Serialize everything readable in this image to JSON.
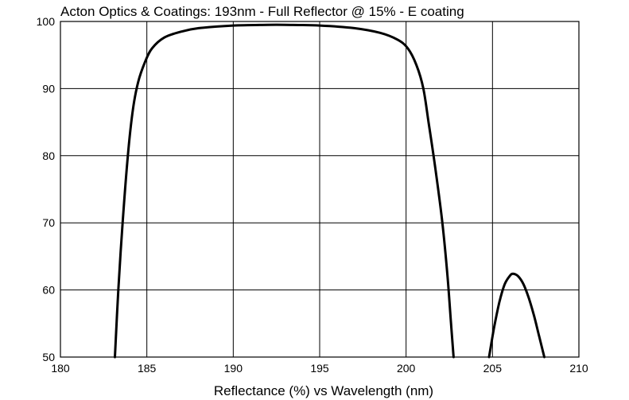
{
  "chart_data": {
    "type": "line",
    "title": "Acton Optics & Coatings:  193nm - Full Reflector @ 15% - E coating",
    "xlabel": "Reflectance (%)  vs  Wavelength (nm)",
    "ylabel": "",
    "xlim": [
      180,
      210
    ],
    "ylim": [
      50,
      100
    ],
    "x_ticks": [
      180,
      185,
      190,
      195,
      200,
      205,
      210
    ],
    "y_ticks": [
      50,
      60,
      70,
      80,
      90,
      100
    ],
    "grid": true,
    "legend": "none",
    "series": [
      {
        "x": [
          183.15,
          183.35,
          183.6,
          183.9,
          184.2,
          184.5,
          184.9,
          185.3,
          186.0,
          187.0,
          188.0,
          190.0,
          192.0,
          193.0,
          195.0,
          197.0,
          198.5,
          199.5,
          200.1,
          200.6,
          201.0,
          201.3,
          201.7,
          202.1,
          202.4,
          202.6,
          202.75
        ],
        "y": [
          50,
          60,
          70,
          80,
          87,
          91,
          94,
          96,
          97.6,
          98.5,
          99.0,
          99.4,
          99.5,
          99.5,
          99.4,
          99.0,
          98.3,
          97.3,
          96.0,
          93.5,
          90.0,
          85.0,
          78.0,
          70.0,
          62.0,
          55.0,
          50.0
        ]
      },
      {
        "x": [
          204.8,
          205.1,
          205.4,
          205.7,
          206.0,
          206.2,
          206.5,
          206.8,
          207.1,
          207.4,
          207.7,
          208.0
        ],
        "y": [
          50,
          54.5,
          58.2,
          60.8,
          62.1,
          62.4,
          62.0,
          60.8,
          58.8,
          56.2,
          53.1,
          50.0
        ]
      }
    ]
  }
}
